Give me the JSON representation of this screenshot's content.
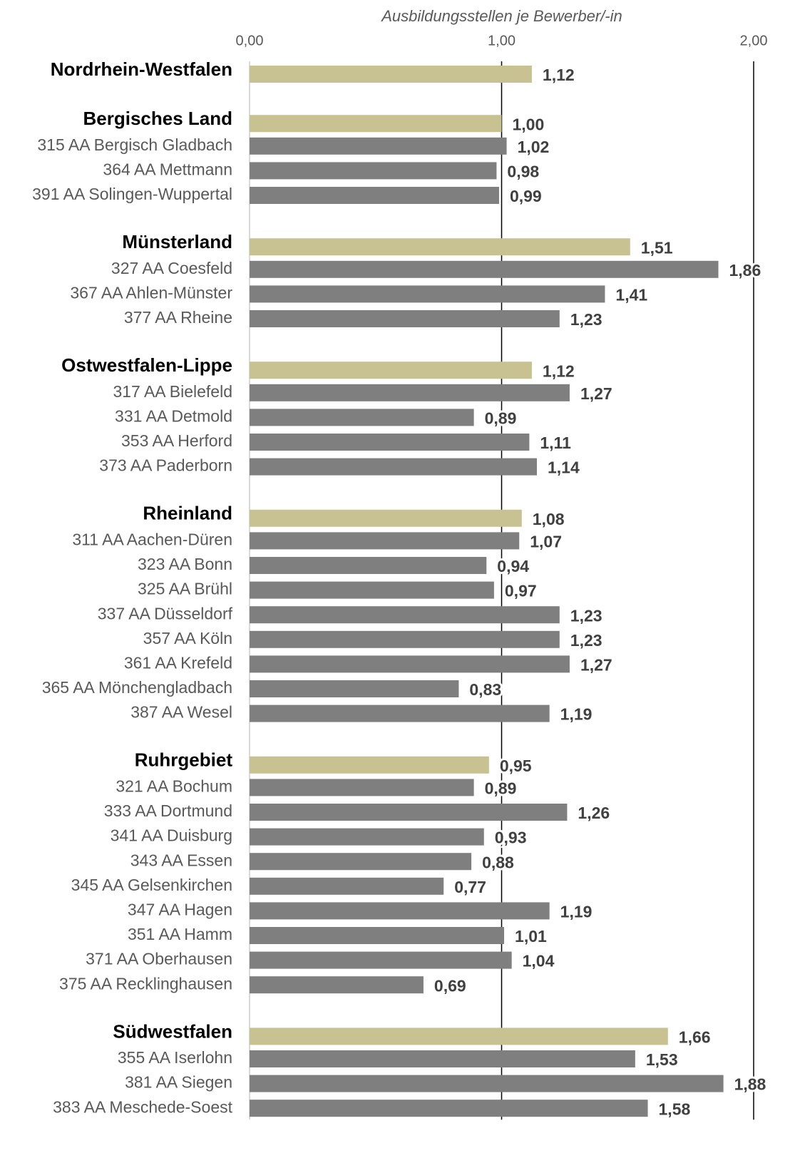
{
  "chart_data": {
    "type": "bar",
    "x_label": "Ausbildungsstellen je Bewerber/-in",
    "xlim": [
      0,
      2
    ],
    "xticks": [
      {
        "value": 0,
        "label": "0,00"
      },
      {
        "value": 1,
        "label": "1,00"
      },
      {
        "value": 2,
        "label": "2,00"
      }
    ],
    "group_color": "#c8c293",
    "district_color": "#7f7f7f",
    "groups": [
      {
        "name": "Nordrhein-Westfalen",
        "value": 1.12,
        "value_label": "1,12",
        "districts": []
      },
      {
        "name": "Bergisches Land",
        "value": 1.0,
        "value_label": "1,00",
        "districts": [
          {
            "name": "315 AA Bergisch Gladbach",
            "value": 1.02,
            "value_label": "1,02"
          },
          {
            "name": "364 AA Mettmann",
            "value": 0.98,
            "value_label": "0,98"
          },
          {
            "name": "391 AA Solingen-Wuppertal",
            "value": 0.99,
            "value_label": "0,99"
          }
        ]
      },
      {
        "name": "Münsterland",
        "value": 1.51,
        "value_label": "1,51",
        "districts": [
          {
            "name": "327 AA Coesfeld",
            "value": 1.86,
            "value_label": "1,86"
          },
          {
            "name": "367 AA Ahlen-Münster",
            "value": 1.41,
            "value_label": "1,41"
          },
          {
            "name": "377 AA Rheine",
            "value": 1.23,
            "value_label": "1,23"
          }
        ]
      },
      {
        "name": "Ostwestfalen-Lippe",
        "value": 1.12,
        "value_label": "1,12",
        "districts": [
          {
            "name": "317 AA Bielefeld",
            "value": 1.27,
            "value_label": "1,27"
          },
          {
            "name": "331 AA Detmold",
            "value": 0.89,
            "value_label": "0,89"
          },
          {
            "name": "353 AA Herford",
            "value": 1.11,
            "value_label": "1,11"
          },
          {
            "name": "373 AA Paderborn",
            "value": 1.14,
            "value_label": "1,14"
          }
        ]
      },
      {
        "name": "Rheinland",
        "value": 1.08,
        "value_label": "1,08",
        "districts": [
          {
            "name": "311 AA Aachen-Düren",
            "value": 1.07,
            "value_label": "1,07"
          },
          {
            "name": "323 AA Bonn",
            "value": 0.94,
            "value_label": "0,94"
          },
          {
            "name": "325 AA Brühl",
            "value": 0.97,
            "value_label": "0,97"
          },
          {
            "name": "337 AA Düsseldorf",
            "value": 1.23,
            "value_label": "1,23"
          },
          {
            "name": "357 AA Köln",
            "value": 1.23,
            "value_label": "1,23"
          },
          {
            "name": "361 AA Krefeld",
            "value": 1.27,
            "value_label": "1,27"
          },
          {
            "name": "365 AA Mönchengladbach",
            "value": 0.83,
            "value_label": "0,83"
          },
          {
            "name": "387 AA Wesel",
            "value": 1.19,
            "value_label": "1,19"
          }
        ]
      },
      {
        "name": "Ruhrgebiet",
        "value": 0.95,
        "value_label": "0,95",
        "districts": [
          {
            "name": "321 AA Bochum",
            "value": 0.89,
            "value_label": "0,89"
          },
          {
            "name": "333 AA Dortmund",
            "value": 1.26,
            "value_label": "1,26"
          },
          {
            "name": "341 AA Duisburg",
            "value": 0.93,
            "value_label": "0,93"
          },
          {
            "name": "343 AA Essen",
            "value": 0.88,
            "value_label": "0,88"
          },
          {
            "name": "345 AA Gelsenkirchen",
            "value": 0.77,
            "value_label": "0,77"
          },
          {
            "name": "347 AA Hagen",
            "value": 1.19,
            "value_label": "1,19"
          },
          {
            "name": "351 AA Hamm",
            "value": 1.01,
            "value_label": "1,01"
          },
          {
            "name": "371 AA Oberhausen",
            "value": 1.04,
            "value_label": "1,04"
          },
          {
            "name": "375 AA Recklinghausen",
            "value": 0.69,
            "value_label": "0,69"
          }
        ]
      },
      {
        "name": "Südwestfalen",
        "value": 1.66,
        "value_label": "1,66",
        "districts": [
          {
            "name": "355 AA Iserlohn",
            "value": 1.53,
            "value_label": "1,53"
          },
          {
            "name": "381 AA Siegen",
            "value": 1.88,
            "value_label": "1,88"
          },
          {
            "name": "383 AA Meschede-Soest",
            "value": 1.58,
            "value_label": "1,58"
          }
        ]
      }
    ]
  }
}
